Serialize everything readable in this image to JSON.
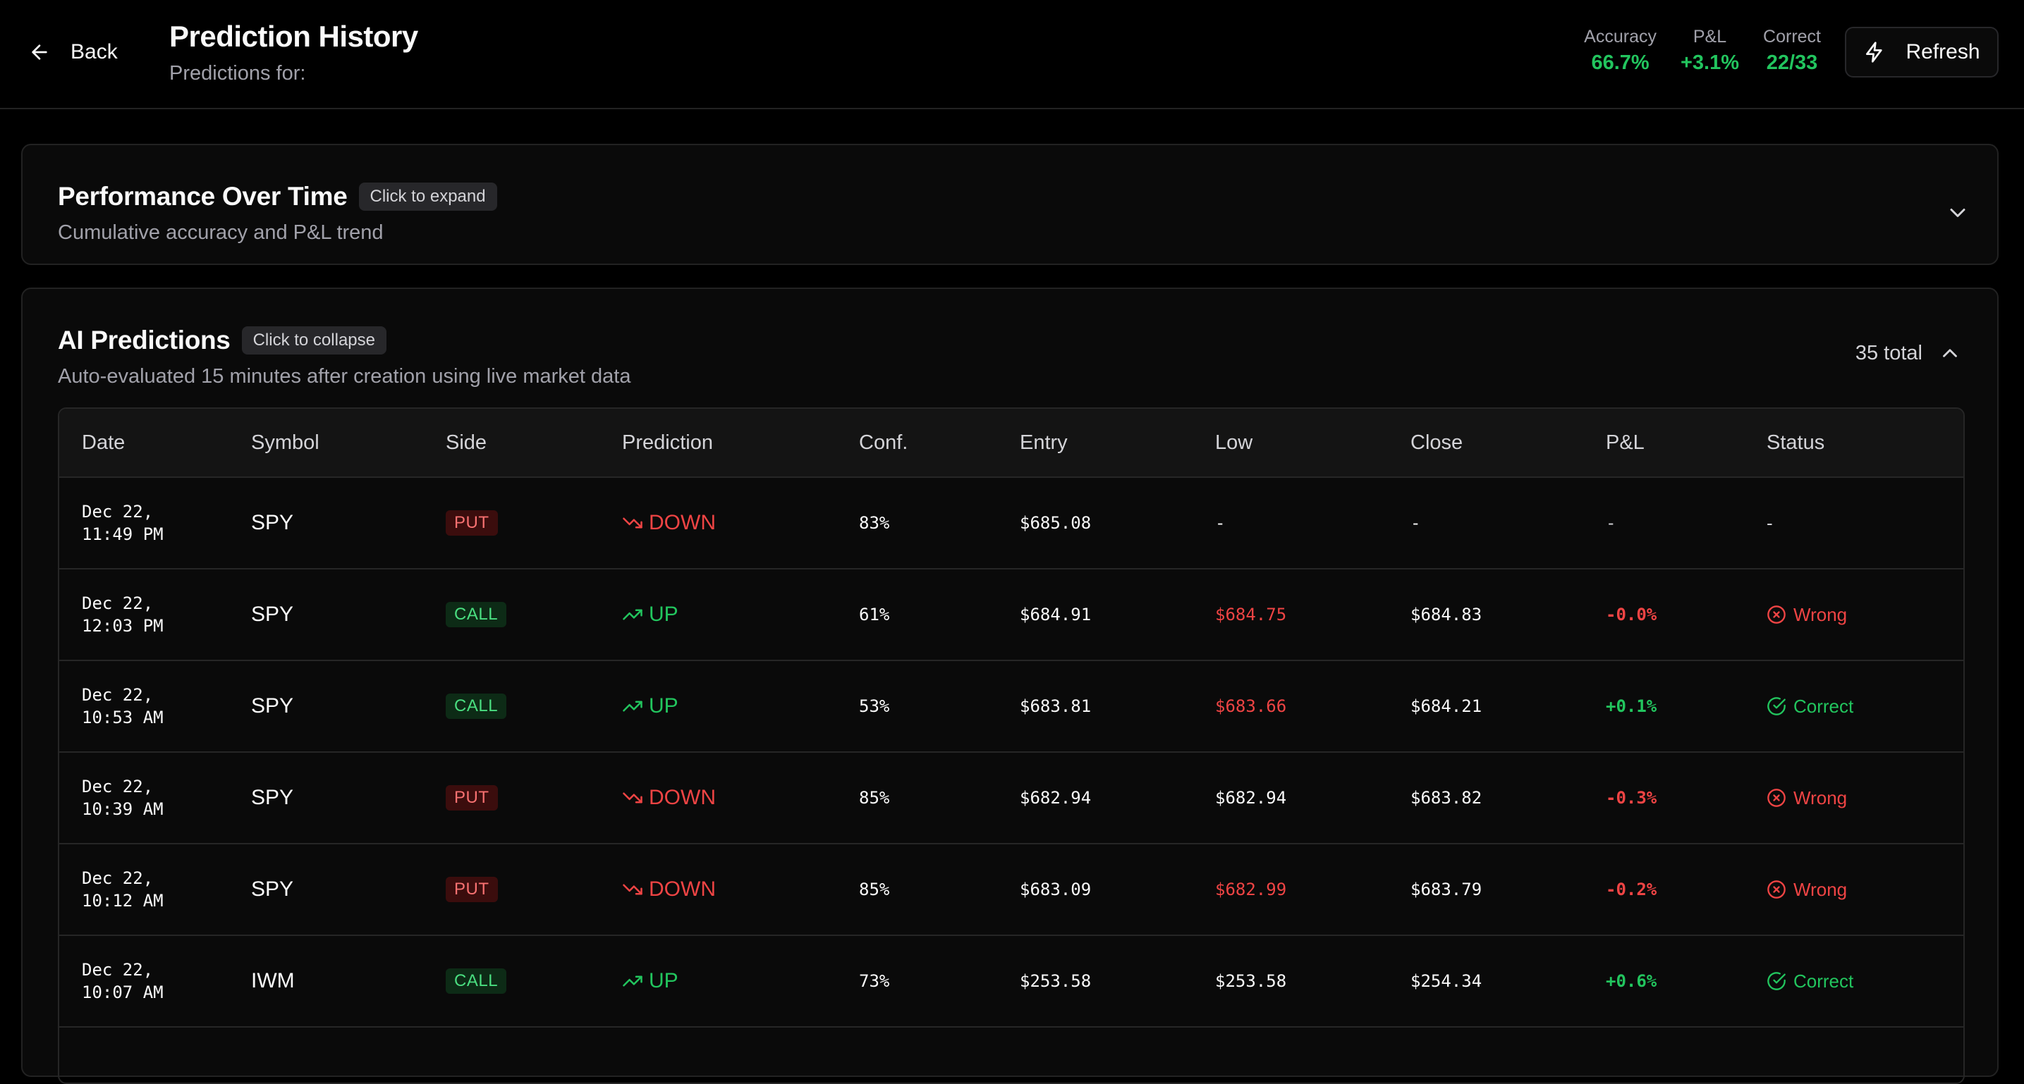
{
  "header": {
    "back_label": "Back",
    "title": "Prediction History",
    "subtitle": "Predictions for:",
    "stats": [
      {
        "label": "Accuracy",
        "value": "66.7%"
      },
      {
        "label": "P&L",
        "value": "+3.1%"
      },
      {
        "label": "Correct",
        "value": "22/33"
      }
    ],
    "refresh_label": "Refresh"
  },
  "performance": {
    "title": "Performance Over Time",
    "pill": "Click to expand",
    "description": "Cumulative accuracy and P&L trend"
  },
  "predictions": {
    "title": "AI Predictions",
    "pill": "Click to collapse",
    "description": "Auto-evaluated 15 minutes after creation using live market data",
    "total": "35 total",
    "columns": [
      "Date",
      "Symbol",
      "Side",
      "Prediction",
      "Conf.",
      "Entry",
      "Low",
      "Close",
      "P&L",
      "Status"
    ],
    "rows": [
      {
        "date1": "Dec 22,",
        "date2": "11:49 PM",
        "symbol": "SPY",
        "side": "PUT",
        "prediction": "DOWN",
        "conf": "83%",
        "entry": "$685.08",
        "low": "-",
        "close": "-",
        "pnl": "-",
        "status": "-"
      },
      {
        "date1": "Dec 22,",
        "date2": "12:03 PM",
        "symbol": "SPY",
        "side": "CALL",
        "prediction": "UP",
        "conf": "61%",
        "entry": "$684.91",
        "low": "$684.75",
        "close": "$684.83",
        "pnl": "-0.0%",
        "status": "Wrong"
      },
      {
        "date1": "Dec 22,",
        "date2": "10:53 AM",
        "symbol": "SPY",
        "side": "CALL",
        "prediction": "UP",
        "conf": "53%",
        "entry": "$683.81",
        "low": "$683.66",
        "close": "$684.21",
        "pnl": "+0.1%",
        "status": "Correct"
      },
      {
        "date1": "Dec 22,",
        "date2": "10:39 AM",
        "symbol": "SPY",
        "side": "PUT",
        "prediction": "DOWN",
        "conf": "85%",
        "entry": "$682.94",
        "low": "$682.94",
        "close": "$683.82",
        "pnl": "-0.3%",
        "status": "Wrong"
      },
      {
        "date1": "Dec 22,",
        "date2": "10:12 AM",
        "symbol": "SPY",
        "side": "PUT",
        "prediction": "DOWN",
        "conf": "85%",
        "entry": "$683.09",
        "low": "$682.99",
        "close": "$683.79",
        "pnl": "-0.2%",
        "status": "Wrong"
      },
      {
        "date1": "Dec 22,",
        "date2": "10:07 AM",
        "symbol": "IWM",
        "side": "CALL",
        "prediction": "UP",
        "conf": "73%",
        "entry": "$253.58",
        "low": "$253.58",
        "close": "$254.34",
        "pnl": "+0.6%",
        "status": "Correct"
      }
    ]
  },
  "colors": {
    "accent_green": "#22c55e",
    "accent_red": "#ef4444"
  }
}
